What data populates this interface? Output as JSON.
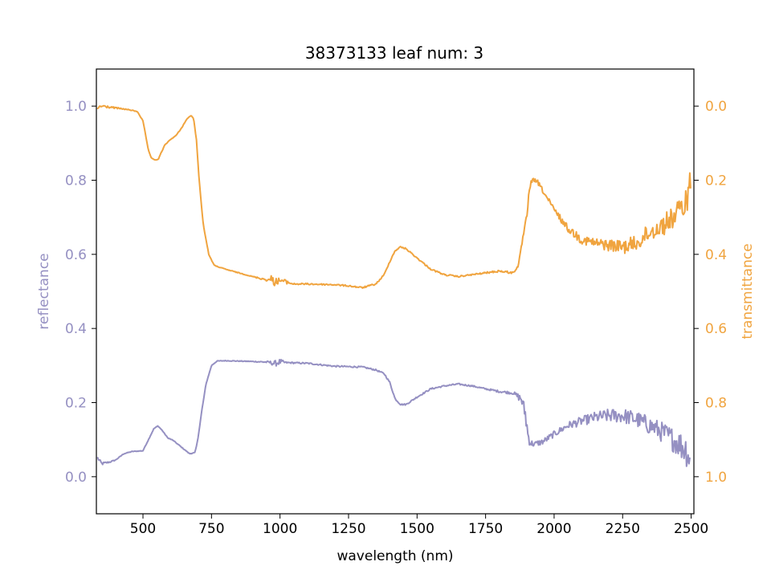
{
  "chart_data": {
    "type": "line",
    "title": "38373133 leaf num: 3",
    "xlabel": "wavelength (nm)",
    "ylabel_left": "reflectance",
    "ylabel_right": "transmittance",
    "xlim": [
      330,
      2510
    ],
    "ylim_left": [
      -0.1,
      1.1
    ],
    "ylim_right": [
      1.1,
      -0.1
    ],
    "right_axis_inverted": true,
    "x_ticks": [
      500,
      750,
      1000,
      1250,
      1500,
      1750,
      2000,
      2250,
      2500
    ],
    "x_tick_labels": [
      "500",
      "750",
      "1000",
      "1250",
      "1500",
      "1750",
      "2000",
      "2250",
      "2500"
    ],
    "y_left_ticks": [
      0.0,
      0.2,
      0.4,
      0.6,
      0.8,
      1.0
    ],
    "y_left_tick_labels": [
      "0.0",
      "0.2",
      "0.4",
      "0.6",
      "0.8",
      "1.0"
    ],
    "y_right_ticks": [
      0.0,
      0.2,
      0.4,
      0.6,
      0.8,
      1.0
    ],
    "y_right_tick_labels": [
      "0.0",
      "0.2",
      "0.4",
      "0.6",
      "0.8",
      "1.0"
    ],
    "grid": false,
    "colors": {
      "reflectance": "#9590c2",
      "transmittance": "#f0a43f"
    },
    "series": [
      {
        "axis": "left",
        "x": [
          335,
          350,
          380,
          400,
          430,
          460,
          500,
          520,
          540,
          555,
          570,
          590,
          610,
          640,
          670,
          690,
          700,
          715,
          730,
          750,
          770,
          800,
          900,
          960,
          980,
          1000,
          1020,
          1100,
          1150,
          1200,
          1250,
          1300,
          1350,
          1380,
          1400,
          1420,
          1440,
          1460,
          1500,
          1550,
          1600,
          1650,
          1700,
          1750,
          1800,
          1850,
          1880,
          1895,
          1905,
          1915,
          1930,
          1960,
          2000,
          2050,
          2100,
          2150,
          2200,
          2250,
          2300,
          2350,
          2400,
          2450,
          2480,
          2495
        ],
        "y": [
          0.05,
          0.035,
          0.04,
          0.045,
          0.062,
          0.068,
          0.07,
          0.1,
          0.13,
          0.137,
          0.125,
          0.105,
          0.098,
          0.08,
          0.062,
          0.065,
          0.1,
          0.18,
          0.25,
          0.3,
          0.312,
          0.313,
          0.311,
          0.309,
          0.305,
          0.31,
          0.308,
          0.306,
          0.302,
          0.298,
          0.297,
          0.296,
          0.288,
          0.278,
          0.255,
          0.21,
          0.195,
          0.195,
          0.215,
          0.237,
          0.245,
          0.25,
          0.245,
          0.237,
          0.23,
          0.226,
          0.21,
          0.17,
          0.11,
          0.09,
          0.088,
          0.095,
          0.115,
          0.138,
          0.15,
          0.16,
          0.165,
          0.165,
          0.155,
          0.138,
          0.118,
          0.092,
          0.075,
          0.05
        ],
        "noise": [
          0.004,
          0.004,
          0.002,
          0.001,
          0.001,
          0.001,
          0.001,
          0.001,
          0.001,
          0.001,
          0.001,
          0.001,
          0.001,
          0.001,
          0.001,
          0.001,
          0.001,
          0.001,
          0.001,
          0.001,
          0.001,
          0.001,
          0.001,
          0.003,
          0.008,
          0.008,
          0.002,
          0.002,
          0.002,
          0.002,
          0.002,
          0.002,
          0.002,
          0.002,
          0.002,
          0.002,
          0.002,
          0.002,
          0.002,
          0.002,
          0.002,
          0.002,
          0.002,
          0.002,
          0.003,
          0.004,
          0.012,
          0.025,
          0.02,
          0.01,
          0.008,
          0.008,
          0.008,
          0.01,
          0.012,
          0.015,
          0.018,
          0.02,
          0.022,
          0.025,
          0.028,
          0.035,
          0.045,
          0.04
        ]
      },
      {
        "axis": "right",
        "x": [
          335,
          350,
          400,
          450,
          480,
          500,
          510,
          520,
          530,
          545,
          555,
          570,
          580,
          600,
          620,
          640,
          660,
          675,
          685,
          695,
          705,
          720,
          740,
          760,
          800,
          900,
          960,
          970,
          980,
          1000,
          1050,
          1100,
          1200,
          1250,
          1300,
          1350,
          1380,
          1400,
          1420,
          1440,
          1460,
          1500,
          1550,
          1600,
          1650,
          1700,
          1750,
          1800,
          1850,
          1870,
          1885,
          1900,
          1910,
          1920,
          1940,
          1960,
          2000,
          2050,
          2100,
          2150,
          2200,
          2250,
          2300,
          2350,
          2400,
          2450,
          2480,
          2500
        ],
        "y": [
          0.005,
          0.0,
          0.005,
          0.01,
          0.015,
          0.04,
          0.08,
          0.12,
          0.14,
          0.145,
          0.145,
          0.12,
          0.105,
          0.09,
          0.08,
          0.06,
          0.035,
          0.025,
          0.035,
          0.09,
          0.2,
          0.32,
          0.4,
          0.43,
          0.44,
          0.46,
          0.47,
          0.465,
          0.475,
          0.47,
          0.48,
          0.48,
          0.482,
          0.485,
          0.49,
          0.48,
          0.455,
          0.42,
          0.39,
          0.38,
          0.385,
          0.41,
          0.44,
          0.455,
          0.46,
          0.455,
          0.45,
          0.445,
          0.45,
          0.43,
          0.36,
          0.3,
          0.22,
          0.2,
          0.205,
          0.23,
          0.28,
          0.33,
          0.36,
          0.37,
          0.375,
          0.38,
          0.37,
          0.34,
          0.32,
          0.29,
          0.26,
          0.2
        ],
        "noise": [
          0.004,
          0.004,
          0.002,
          0.001,
          0.001,
          0.001,
          0.001,
          0.001,
          0.001,
          0.001,
          0.001,
          0.001,
          0.001,
          0.001,
          0.001,
          0.001,
          0.001,
          0.001,
          0.001,
          0.001,
          0.001,
          0.001,
          0.001,
          0.001,
          0.001,
          0.001,
          0.004,
          0.01,
          0.01,
          0.008,
          0.002,
          0.002,
          0.002,
          0.002,
          0.002,
          0.002,
          0.002,
          0.002,
          0.002,
          0.002,
          0.002,
          0.002,
          0.002,
          0.002,
          0.002,
          0.002,
          0.002,
          0.003,
          0.003,
          0.004,
          0.005,
          0.008,
          0.008,
          0.006,
          0.006,
          0.006,
          0.008,
          0.01,
          0.012,
          0.014,
          0.016,
          0.018,
          0.022,
          0.025,
          0.028,
          0.032,
          0.04,
          0.04
        ]
      }
    ]
  }
}
